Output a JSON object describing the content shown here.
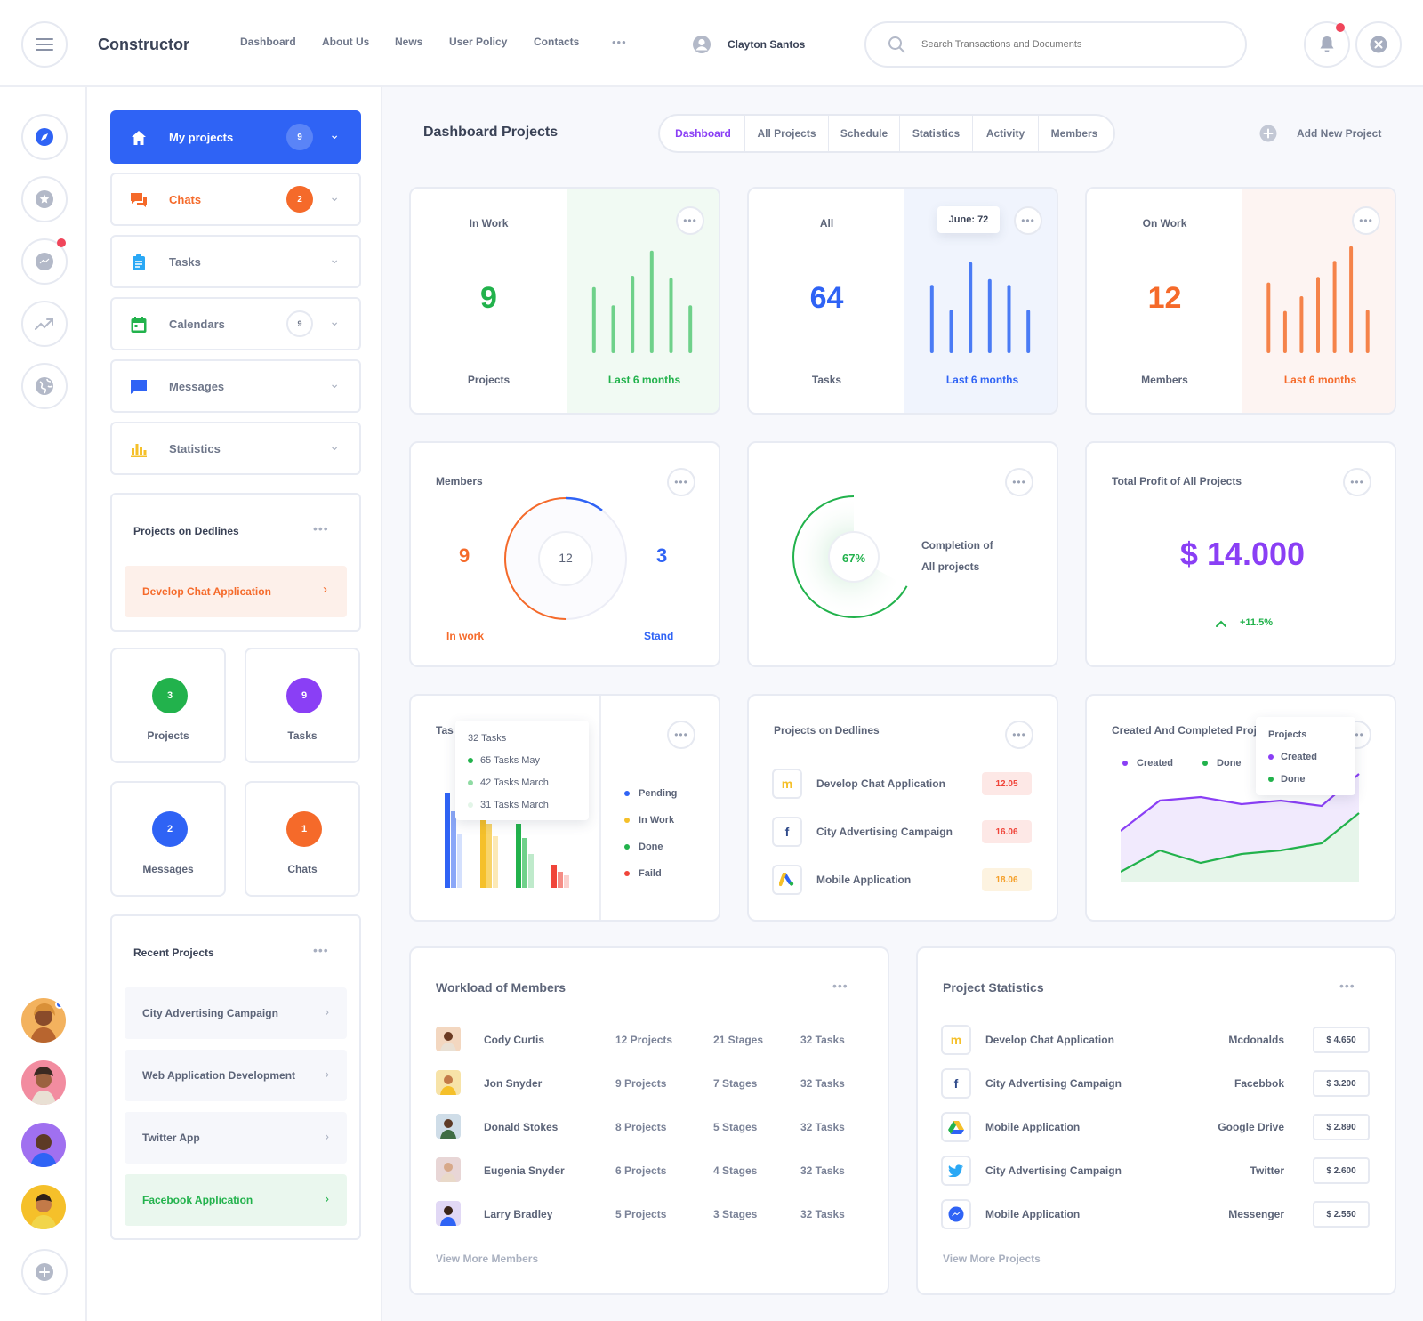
{
  "header": {
    "app_name": "Constructor",
    "nav": [
      "Dashboard",
      "About Us",
      "News",
      "User Policy",
      "Contacts"
    ],
    "more": "•••",
    "user_name": "Clayton Santos",
    "search_placeholder": "Search Transactions and Documents"
  },
  "sidebar": {
    "menu": [
      {
        "label": "My projects",
        "badge": "9"
      },
      {
        "label": "Chats",
        "badge": "2"
      },
      {
        "label": "Tasks"
      },
      {
        "label": "Calendars",
        "badge": "9"
      },
      {
        "label": "Messages"
      },
      {
        "label": "Statistics"
      }
    ],
    "deadlines": {
      "title": "Projects on Dedlines",
      "item": "Develop Chat Application"
    },
    "stats": [
      {
        "value": "3",
        "label": "Projects",
        "color": "#22b24c"
      },
      {
        "value": "9",
        "label": "Tasks",
        "color": "#8a3ff5"
      },
      {
        "value": "2",
        "label": "Messages",
        "color": "#2f63f5"
      },
      {
        "value": "1",
        "label": "Chats",
        "color": "#f56a2a"
      }
    ],
    "recent": {
      "title": "Recent Projects",
      "items": [
        "City Advertising Campaign",
        "Web Application Development",
        "Twitter App",
        "Facebook Application"
      ]
    }
  },
  "main": {
    "title": "Dashboard Projects",
    "tabs": [
      "Dashboard",
      "All Projects",
      "Schedule",
      "Statistics",
      "Activity",
      "Members"
    ],
    "add_new": "Add New Project",
    "kpi": [
      {
        "label": "In Work",
        "value": "9",
        "sub": "Projects",
        "period": "Last 6 months",
        "color": "#22b24c",
        "bar_color": "#6fd18a",
        "bg": "#f1faf3",
        "bars": [
          0.58,
          0.42,
          0.68,
          0.9,
          0.66,
          0.42
        ]
      },
      {
        "label": "All",
        "value": "64",
        "sub": "Tasks",
        "period": "Last 6 months",
        "color": "#2f63f5",
        "bar_color": "#4a7bf5",
        "bg": "#f0f4fd",
        "bars": [
          0.6,
          0.38,
          0.8,
          0.65,
          0.6,
          0.38
        ],
        "tooltip": "June: 72"
      },
      {
        "label": "On Work",
        "value": "12",
        "sub": "Members",
        "period": "Last 6 months",
        "color": "#f56a2a",
        "bar_color": "#f5834a",
        "bg": "#fdf4f2",
        "bars": [
          0.62,
          0.37,
          0.5,
          0.67,
          0.81,
          0.94,
          0.38
        ]
      }
    ],
    "members": {
      "title": "Members",
      "in_work": "9",
      "in_work_label": "In work",
      "total": "12",
      "stand": "3",
      "stand_label": "Stand"
    },
    "completion": {
      "percent": "67%",
      "label_line1": "Completion of",
      "label_line2": "All projects",
      "fraction": 0.67
    },
    "profit": {
      "title": "Total Profit of All Projects",
      "value": "$ 14.000",
      "change": "+11.5%"
    },
    "tasks_chart": {
      "title": "Tas",
      "tooltip": {
        "title": "32 Tasks",
        "rows": [
          "65 Tasks May",
          "42 Tasks March",
          "31 Tasks March"
        ]
      },
      "legend": [
        {
          "label": "Pending",
          "color": "#2f63f5"
        },
        {
          "label": "In Work",
          "color": "#f5c02a"
        },
        {
          "label": "Done",
          "color": "#22b24c"
        },
        {
          "label": "Faild",
          "color": "#f0453a"
        }
      ]
    },
    "deadlines": {
      "title": "Projects on Dedlines",
      "rows": [
        {
          "name": "Develop Chat Application",
          "date": "12.05",
          "logo": "m"
        },
        {
          "name": "City Advertising Campaign",
          "date": "16.06",
          "logo": "f"
        },
        {
          "name": "Mobile Application",
          "date": "18.06",
          "logo": "ads"
        }
      ]
    },
    "created_chart": {
      "title": "Created And Completed Proje",
      "legend": [
        "Created",
        "Done"
      ],
      "tooltip": {
        "title": "Projects",
        "rows": [
          "Created",
          "Done"
        ]
      }
    },
    "workload": {
      "title": "Workload of Members",
      "rows": [
        {
          "name": "Cody Curtis",
          "projects": "12 Projects",
          "stages": "21 Stages",
          "tasks": "32 Tasks"
        },
        {
          "name": "Jon Snyder",
          "projects": "9 Projects",
          "stages": "7 Stages",
          "tasks": "32 Tasks"
        },
        {
          "name": "Donald Stokes",
          "projects": "8 Projects",
          "stages": "5 Stages",
          "tasks": "32 Tasks"
        },
        {
          "name": "Eugenia Snyder",
          "projects": "6 Projects",
          "stages": "4 Stages",
          "tasks": "32 Tasks"
        },
        {
          "name": "Larry Bradley",
          "projects": "5 Projects",
          "stages": "3 Stages",
          "tasks": "32 Tasks"
        }
      ],
      "more": "View More Members"
    },
    "project_stats": {
      "title": "Project Statistics",
      "rows": [
        {
          "name": "Develop Chat Application",
          "client": "Mcdonalds",
          "price": "$ 4.650",
          "logo": "m"
        },
        {
          "name": "City Advertising Campaign",
          "client": "Facebbok",
          "price": "$ 3.200",
          "logo": "f"
        },
        {
          "name": "Mobile Application",
          "client": "Google Drive",
          "price": "$ 2.890",
          "logo": "drive"
        },
        {
          "name": "City Advertising Campaign",
          "client": "Twitter",
          "price": "$ 2.600",
          "logo": "tw"
        },
        {
          "name": "Mobile Application",
          "client": "Messenger",
          "price": "$ 2.550",
          "logo": "msg"
        }
      ],
      "more": "View More Projects"
    }
  }
}
